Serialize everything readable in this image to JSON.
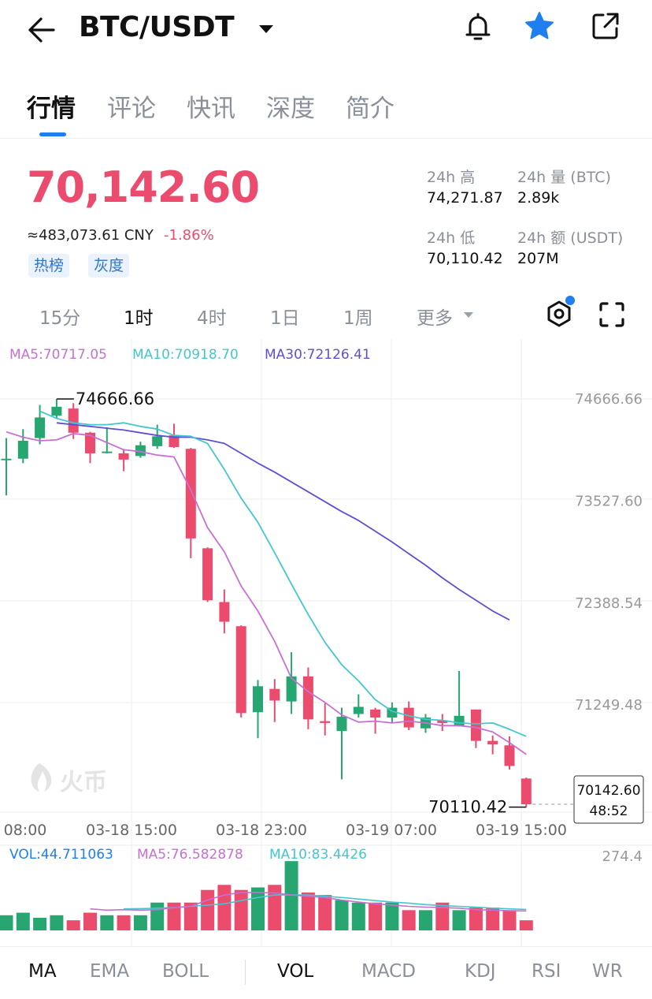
{
  "header": {
    "pair": "BTC/USDT",
    "icons": [
      "back-arrow-icon",
      "caret-down-icon",
      "bell-icon",
      "star-icon",
      "share-icon"
    ]
  },
  "tabs": [
    {
      "label": "行情"
    },
    {
      "label": "评论"
    },
    {
      "label": "快讯"
    },
    {
      "label": "深度"
    },
    {
      "label": "简介"
    }
  ],
  "ticker": {
    "price": "70,142.60",
    "cny": "≈483,073.61 CNY",
    "change": "-1.86%",
    "tags": [
      "热榜",
      "灰度"
    ],
    "high_label": "24h 高",
    "high_value": "74,271.87",
    "vol_label": "24h 量 (BTC)",
    "vol_value": "2.89k",
    "low_label": "24h 低",
    "low_value": "70,110.42",
    "amount_label": "24h 额 (USDT)",
    "amount_value": "207M"
  },
  "intervals": {
    "items": [
      "15分",
      "1时",
      "4时",
      "1日",
      "1周",
      "更多"
    ],
    "selected": "1时"
  },
  "colors": {
    "up": "#27a672",
    "down": "#eb4b6d",
    "ma5": "#c86fd3",
    "ma10": "#43c7cf",
    "ma30": "#5e4fd6",
    "vol_label": "#1e7ff0",
    "accent": "#1e7ff0"
  },
  "chart_data": {
    "type": "candlestick",
    "interval": "1时",
    "ma_legend": {
      "ma5": "MA5:70717.05",
      "ma10": "MA10:70918.70",
      "ma30": "MA30:72126.41"
    },
    "y_ticks": [
      "74666.66",
      "73527.60",
      "72388.54",
      "71249.48"
    ],
    "y_values": [
      74666.66,
      73527.6,
      72388.54,
      71249.48
    ],
    "x_ticks": [
      "08:00",
      "03-18 15:00",
      "03-18 23:00",
      "03-19 07:00",
      "03-19 15:00"
    ],
    "high_marker": "74666.66",
    "low_marker": "70110.42",
    "last_price": "70142.60",
    "countdown": "48:52",
    "watermark": "火币",
    "candles": [
      {
        "o": 74000,
        "h": 74230,
        "l": 73590,
        "c": 74000
      },
      {
        "o": 74000,
        "h": 74330,
        "l": 73950,
        "c": 74200
      },
      {
        "o": 74230,
        "h": 74600,
        "l": 74160,
        "c": 74460
      },
      {
        "o": 74480,
        "h": 74666.66,
        "l": 74450,
        "c": 74580
      },
      {
        "o": 74560,
        "h": 74620,
        "l": 74220,
        "c": 74290
      },
      {
        "o": 74290,
        "h": 74300,
        "l": 73950,
        "c": 74060
      },
      {
        "o": 74080,
        "h": 74350,
        "l": 74060,
        "c": 74080
      },
      {
        "o": 74060,
        "h": 74110,
        "l": 73860,
        "c": 73990
      },
      {
        "o": 74030,
        "h": 74190,
        "l": 74010,
        "c": 74150
      },
      {
        "o": 74140,
        "h": 74380,
        "l": 74110,
        "c": 74250
      },
      {
        "o": 74260,
        "h": 74390,
        "l": 74120,
        "c": 74130
      },
      {
        "o": 74110,
        "h": 74120,
        "l": 72890,
        "c": 73110
      },
      {
        "o": 73000,
        "h": 73010,
        "l": 72400,
        "c": 72420
      },
      {
        "o": 72400,
        "h": 72540,
        "l": 72050,
        "c": 72180
      },
      {
        "o": 72130,
        "h": 72140,
        "l": 71110,
        "c": 71160
      },
      {
        "o": 71170,
        "h": 71530,
        "l": 70880,
        "c": 71460
      },
      {
        "o": 71430,
        "h": 71540,
        "l": 71060,
        "c": 71300
      },
      {
        "o": 71290,
        "h": 71840,
        "l": 71150,
        "c": 71570
      },
      {
        "o": 71570,
        "h": 71670,
        "l": 70980,
        "c": 71090
      },
      {
        "o": 71070,
        "h": 71270,
        "l": 70910,
        "c": 71050
      },
      {
        "o": 70960,
        "h": 71220,
        "l": 70420,
        "c": 71120
      },
      {
        "o": 71150,
        "h": 71370,
        "l": 71110,
        "c": 71230
      },
      {
        "o": 71200,
        "h": 71220,
        "l": 70930,
        "c": 71110
      },
      {
        "o": 71110,
        "h": 71280,
        "l": 71050,
        "c": 71220
      },
      {
        "o": 71220,
        "h": 71290,
        "l": 70970,
        "c": 71000
      },
      {
        "o": 70990,
        "h": 71150,
        "l": 70940,
        "c": 71110
      },
      {
        "o": 71080,
        "h": 71150,
        "l": 70960,
        "c": 71050
      },
      {
        "o": 71020,
        "h": 71630,
        "l": 71010,
        "c": 71130
      },
      {
        "o": 71200,
        "h": 71200,
        "l": 70770,
        "c": 70850
      },
      {
        "o": 70850,
        "h": 70910,
        "l": 70700,
        "c": 70810
      },
      {
        "o": 70800,
        "h": 70900,
        "l": 70530,
        "c": 70570
      },
      {
        "o": 70430,
        "h": 70440,
        "l": 70110.42,
        "c": 70142.6
      }
    ],
    "ma5_series": [
      74300,
      74240,
      74200,
      74210,
      74280,
      74260,
      74180,
      74100,
      74080,
      74040,
      74020,
      73650,
      73230,
      72960,
      72580,
      72300,
      71960,
      71550,
      71400,
      71280,
      71140,
      71060,
      71070,
      71050,
      71070,
      71050,
      71020,
      71020,
      71000,
      70950,
      70830,
      70700
    ],
    "ma10_series": [
      74530,
      74450,
      74400,
      74380,
      74380,
      74400,
      74360,
      74330,
      74260,
      74250,
      74170,
      73880,
      73560,
      73290,
      72950,
      72600,
      72260,
      71950,
      71700,
      71520,
      71310,
      71180,
      71130,
      71090,
      71080,
      71050,
      71040,
      71050,
      70980,
      70900
    ],
    "ma30_series": [
      74400,
      74380,
      74360,
      74340,
      74320,
      74290,
      74260,
      74240,
      74240,
      74210,
      74170,
      74060,
      73950,
      73850,
      73740,
      73630,
      73520,
      73410,
      73310,
      73190,
      73070,
      72940,
      72810,
      72670,
      72540,
      72420,
      72300,
      72200
    ],
    "volume": {
      "legend": {
        "vol": "VOL:44.711063",
        "ma5": "MA5:76.582878",
        "ma10": "MA10:83.4426"
      },
      "max_label": "274.4",
      "values": [
        60,
        70,
        50,
        60,
        40,
        70,
        60,
        60,
        60,
        110,
        110,
        110,
        160,
        180,
        160,
        170,
        180,
        274,
        150,
        140,
        120,
        110,
        110,
        110,
        80,
        80,
        110,
        80,
        90,
        90,
        80,
        40
      ],
      "ma5": [
        85,
        80,
        82,
        80,
        82,
        90,
        95,
        120,
        140,
        150,
        150,
        148,
        140,
        135,
        130,
        120,
        112,
        105,
        100,
        95,
        92,
        90,
        88,
        82,
        80,
        78,
        77
      ],
      "ma10": [
        85,
        86,
        88,
        90,
        95,
        100,
        105,
        118,
        130,
        140,
        140,
        140,
        135,
        130,
        124,
        118,
        112,
        108,
        102,
        98,
        95,
        92,
        88,
        85,
        83
      ]
    }
  },
  "indicators": {
    "main": [
      "MA",
      "EMA",
      "BOLL"
    ],
    "sub": [
      "VOL",
      "MACD",
      "KDJ",
      "RSI",
      "WR"
    ],
    "selected_main": "MA",
    "selected_sub": "VOL"
  }
}
